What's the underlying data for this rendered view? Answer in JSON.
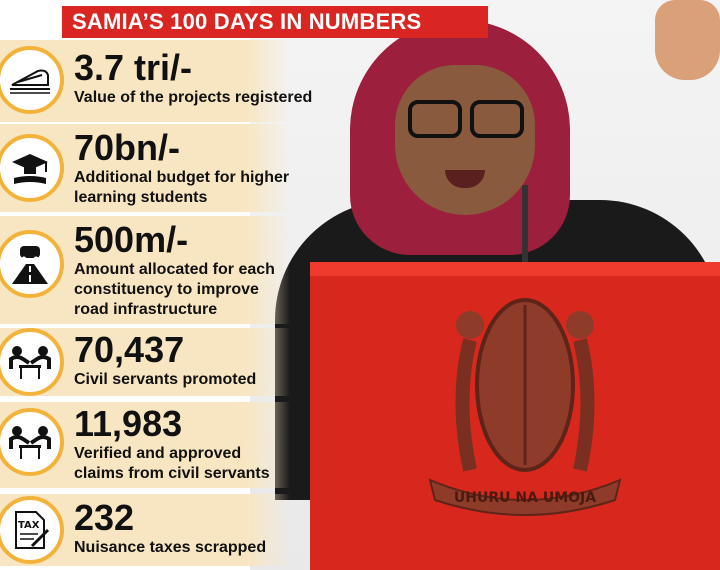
{
  "title": "SAMIA’S 100 DAYS IN NUMBERS",
  "stats": [
    {
      "value": "3.7 tri/-",
      "desc_lines": [
        "Value of the projects registered"
      ],
      "icon": "train-icon"
    },
    {
      "value": "70bn/-",
      "desc_lines": [
        "Additional budget for higher",
        "learning students"
      ],
      "icon": "graduation-cap-icon"
    },
    {
      "value": "500m/-",
      "desc_lines": [
        "Amount allocated for each",
        "constituency to improve",
        "road infrastructure"
      ],
      "icon": "road-car-icon"
    },
    {
      "value": "70,437",
      "desc_lines": [
        "Civil servants promoted"
      ],
      "icon": "meeting-icon"
    },
    {
      "value": "11,983",
      "desc_lines": [
        "Verified and approved",
        "claims from civil servants"
      ],
      "icon": "meeting-icon"
    },
    {
      "value": "232",
      "desc_lines": [
        "Nuisance taxes scrapped"
      ],
      "icon": "tax-document-icon"
    }
  ],
  "emblem_text": "UHURU NA UMOJA",
  "colors": {
    "banner_red": "#d92622",
    "panel_cream": "#f8e6c2",
    "ring_orange": "#f3b33a",
    "podium_red": "#d8281e",
    "hijab": "#9c1f3d"
  }
}
